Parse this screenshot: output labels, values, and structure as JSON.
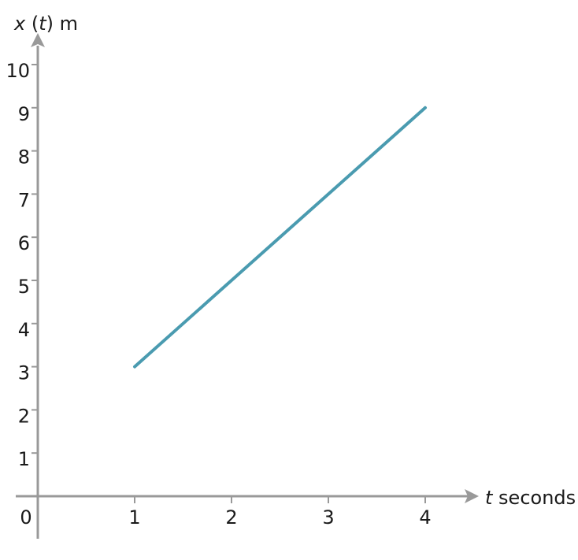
{
  "chart_data": {
    "type": "line",
    "xlabel": {
      "variable": "t",
      "unit": " seconds"
    },
    "ylabel": {
      "variable": "x",
      "open": " (",
      "arg": "t",
      "close": ")",
      "unit": " m"
    },
    "origin_label": "0",
    "xlim": [
      0,
      4.4
    ],
    "ylim": [
      -1,
      10.6
    ],
    "x_ticks": [
      1,
      2,
      3,
      4
    ],
    "y_ticks": [
      1,
      2,
      3,
      4,
      5,
      6,
      7,
      8,
      9,
      10
    ],
    "series": [
      {
        "x": [
          1,
          4
        ],
        "y": [
          3,
          9
        ],
        "color": "#4A9BB0"
      }
    ],
    "grid": false,
    "axis_color": "#999999"
  }
}
